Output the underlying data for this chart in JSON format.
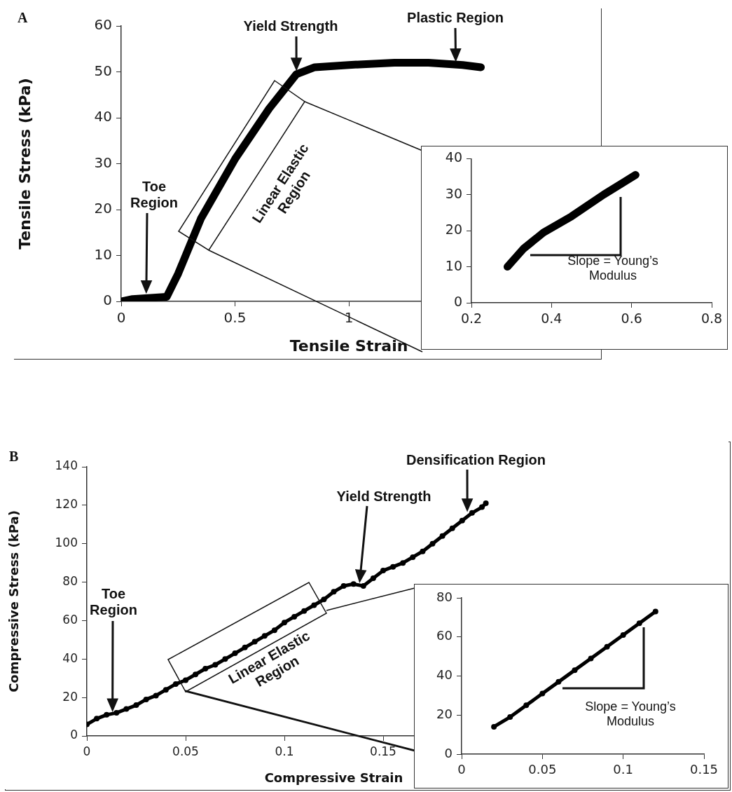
{
  "chart_data": [
    {
      "type": "line",
      "xlabel": "Tensile Strain",
      "ylabel": "Tensile Stress (kPa)",
      "color": "#000000",
      "xlim": [
        0,
        2
      ],
      "xticks": [
        0,
        0.5,
        1
      ],
      "ylim": [
        0,
        60
      ],
      "yticks": [
        0,
        10,
        20,
        30,
        40,
        50,
        60
      ],
      "x": [
        0,
        0.05,
        0.2,
        0.25,
        0.3,
        0.35,
        0.5,
        0.65,
        0.77,
        0.85,
        1.0,
        1.2,
        1.35,
        1.5,
        1.58
      ],
      "values": [
        0,
        0.5,
        1,
        6,
        12,
        18,
        31,
        42,
        49.5,
        51,
        51.5,
        52,
        52,
        51.5,
        51
      ],
      "annotations": [
        "A",
        "Toe Region",
        {
          "text": "Yield Strength",
          "x": 0.77,
          "y": 49.5
        },
        {
          "text": "Plastic Region",
          "x": 1.47,
          "y": 51.5
        },
        "Linear Elastic Region"
      ]
    },
    {
      "type": "line",
      "color": "#000000",
      "xlim": [
        0.2,
        0.8
      ],
      "xticks": [
        0.2,
        0.4,
        0.6,
        0.8
      ],
      "ylim": [
        0,
        40
      ],
      "yticks": [
        0,
        10,
        20,
        30,
        40
      ],
      "x": [
        0.29,
        0.33,
        0.38,
        0.45,
        0.53,
        0.61
      ],
      "values": [
        10,
        15,
        19.5,
        24,
        30,
        35.5
      ],
      "annotations": [
        "Slope = Young’s Modulus"
      ]
    },
    {
      "type": "line",
      "marker": "circle",
      "xlabel": "Compressive Strain",
      "ylabel": "Compressive Stress (kPa)",
      "color": "#000000",
      "xlim": [
        0,
        0.25
      ],
      "xticks": [
        0,
        0.05,
        0.1,
        0.15
      ],
      "ylim": [
        0,
        140
      ],
      "yticks": [
        0,
        20,
        40,
        60,
        80,
        100,
        120,
        140
      ],
      "x": [
        0,
        0.005,
        0.01,
        0.015,
        0.02,
        0.025,
        0.03,
        0.035,
        0.04,
        0.045,
        0.05,
        0.055,
        0.06,
        0.065,
        0.07,
        0.075,
        0.08,
        0.085,
        0.09,
        0.095,
        0.1,
        0.105,
        0.11,
        0.115,
        0.12,
        0.125,
        0.13,
        0.135,
        0.14,
        0.145,
        0.15,
        0.155,
        0.16,
        0.165,
        0.17,
        0.175,
        0.18,
        0.185,
        0.19,
        0.195,
        0.2,
        0.202
      ],
      "values": [
        6,
        9,
        11,
        12,
        14,
        16,
        19,
        21,
        24,
        27,
        29,
        32,
        35,
        37,
        40,
        43,
        46,
        49,
        52,
        55,
        59,
        62,
        65,
        68,
        71,
        75,
        78,
        79,
        78,
        82,
        86,
        88,
        90,
        93,
        96,
        100,
        104,
        108,
        112,
        116,
        119,
        121
      ],
      "annotations": [
        "B",
        "Toe Region",
        "Yield Strength",
        "Densification Region",
        "Linear  Elastic Region"
      ]
    },
    {
      "type": "line",
      "marker": "circle",
      "color": "#000000",
      "xlim": [
        0,
        0.15
      ],
      "xticks": [
        0,
        0.05,
        0.1,
        0.15
      ],
      "ylim": [
        0,
        80
      ],
      "yticks": [
        0,
        20,
        40,
        60,
        80
      ],
      "x": [
        0.02,
        0.03,
        0.04,
        0.05,
        0.06,
        0.07,
        0.08,
        0.09,
        0.1,
        0.11,
        0.12
      ],
      "values": [
        14,
        19,
        25,
        31,
        37,
        43,
        49,
        55,
        61,
        67,
        73
      ],
      "annotations": [
        "Slope = Young’s Modulus"
      ]
    }
  ]
}
